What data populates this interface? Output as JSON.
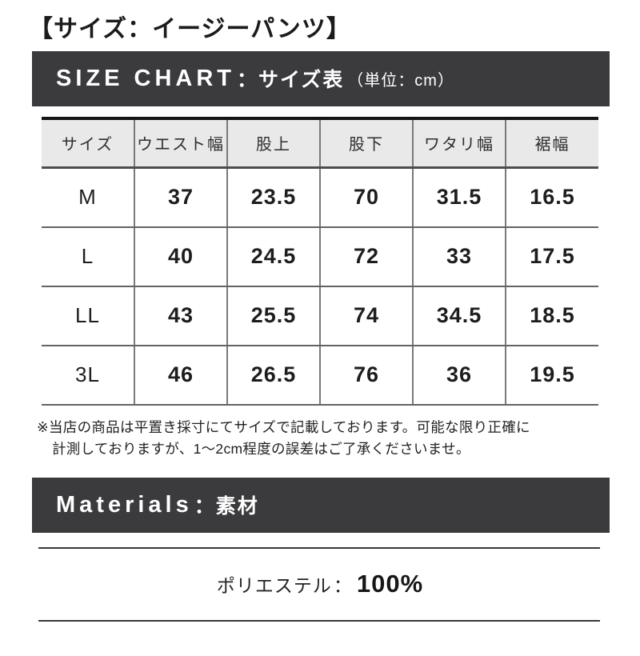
{
  "page": {
    "title": "【サイズ：イージーパンツ】"
  },
  "size_chart": {
    "heading_en": "SIZE CHART",
    "heading_sep": "：",
    "heading_jp": "サイズ表",
    "heading_unit": "（単位：cm）",
    "table": {
      "headers": [
        "サイズ",
        "ウエスト幅",
        "股上",
        "股下",
        "ワタリ幅",
        "裾幅"
      ],
      "rows": [
        {
          "size": "M",
          "values": [
            "37",
            "23.5",
            "70",
            "31.5",
            "16.5"
          ]
        },
        {
          "size": "L",
          "values": [
            "40",
            "24.5",
            "72",
            "33",
            "17.5"
          ]
        },
        {
          "size": "LL",
          "values": [
            "43",
            "25.5",
            "74",
            "34.5",
            "18.5"
          ]
        },
        {
          "size": "3L",
          "values": [
            "46",
            "26.5",
            "76",
            "36",
            "19.5"
          ]
        }
      ]
    },
    "note_line1": "※当店の商品は平置き採寸にてサイズで記載しております。可能な限り正確に",
    "note_line2": "計測しておりますが、1〜2cm程度の誤差はご了承くださいませ。"
  },
  "materials": {
    "heading_en": "Materials",
    "heading_sep": "：",
    "heading_jp": "素材",
    "composition_label": "ポリエステル",
    "composition_sep": "：",
    "composition_value": "100%"
  },
  "colors": {
    "banner_bg": "#3b3b3d",
    "banner_text": "#ffffff",
    "table_header_bg": "#e9e9e9",
    "table_border_top": "#151515",
    "row_line": "#636363",
    "column_line": "#7a7a7a",
    "rule_line": "#3a3a3a",
    "text": "#1c1c1c"
  }
}
